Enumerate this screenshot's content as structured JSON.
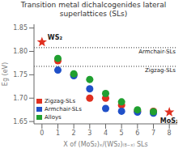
{
  "chart_data": {
    "type": "scatter",
    "title": "Transition metal dichalcogenides lateral superlattices (SLs)",
    "xlabel": "X of (MoS₂)ₓ/(WS₂)₍₈₋ₓ₎ SLs",
    "ylabel": "Eg (eV)",
    "xlim": [
      -0.5,
      8.5
    ],
    "ylim": [
      1.645,
      1.858
    ],
    "xticks": [
      0,
      1,
      2,
      3,
      4,
      5,
      6,
      7,
      8
    ],
    "yticks": [
      1.65,
      {
        "value": 1.7,
        "label": "1.70"
      },
      1.75,
      {
        "value": 1.8,
        "label": "1.80"
      },
      1.85
    ],
    "series": [
      {
        "name": "Zigzag-SLs",
        "color": "#e03020",
        "x": [
          1,
          2,
          3,
          4,
          5,
          6,
          7
        ],
        "values": [
          1.78,
          1.75,
          1.7,
          1.7,
          1.685,
          1.672,
          1.672
        ]
      },
      {
        "name": "Armchair-SLs",
        "color": "#2050c8",
        "x": [
          1,
          2,
          3,
          4,
          5,
          6,
          7
        ],
        "values": [
          1.76,
          1.748,
          1.72,
          1.678,
          1.672,
          1.67,
          1.668
        ]
      },
      {
        "name": "Alloys",
        "color": "#20a030",
        "x": [
          1,
          2,
          3,
          4,
          5,
          6,
          7
        ],
        "values": [
          1.785,
          1.752,
          1.74,
          1.71,
          1.692,
          1.675,
          1.671
        ]
      }
    ],
    "points": [
      {
        "label": "WS₂",
        "x": 0,
        "y": 1.82,
        "marker": "star",
        "color": "#e03020"
      },
      {
        "label": "MoS₂",
        "x": 8,
        "y": 1.67,
        "marker": "star",
        "color": "#e03020"
      }
    ],
    "reference_lines": [
      {
        "label": "Armchair-SLs",
        "y": 1.808,
        "line_style": "dotted"
      },
      {
        "label": "Zigzag-SLs",
        "y": 1.768,
        "line_style": "dotted"
      }
    ],
    "legend": "lower left",
    "grid": false
  }
}
